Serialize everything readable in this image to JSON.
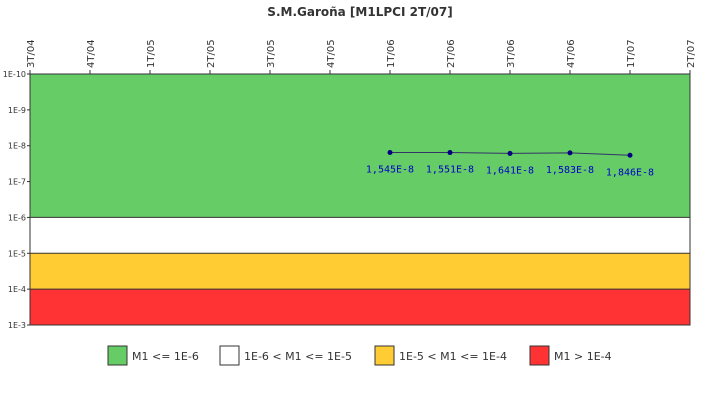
{
  "chart_data": {
    "type": "line",
    "title": "S.M.Garoña [M1LPCI 2T/07]",
    "xlabel": "",
    "ylabel": "",
    "x_ticks": [
      "3T/04",
      "4T/04",
      "1T/05",
      "2T/05",
      "3T/05",
      "4T/05",
      "1T/06",
      "2T/06",
      "3T/06",
      "4T/06",
      "1T/07",
      "2T/07"
    ],
    "y_scale": "log",
    "y_ticks": [
      "1E-10",
      "1E-9",
      "1E-8",
      "1E-7",
      "1E-6",
      "1E-5",
      "1E-4",
      "1E-3"
    ],
    "y_range": [
      1e-10,
      0.001
    ],
    "y_inverted": true,
    "grid": false,
    "legend_position": "bottom",
    "bands": [
      {
        "label": "M1 <= 1E-6",
        "from": 1e-10,
        "to": 1e-06,
        "color": "#66cc66"
      },
      {
        "label": "1E-6 < M1 <= 1E-5",
        "from": 1e-06,
        "to": 1e-05,
        "color": "#ffffff"
      },
      {
        "label": "1E-5 < M1 <= 1E-4",
        "from": 1e-05,
        "to": 0.0001,
        "color": "#ffcc33"
      },
      {
        "label": "M1 > 1E-4",
        "from": 0.0001,
        "to": 0.001,
        "color": "#ff3333"
      }
    ],
    "series": [
      {
        "color": "#333366",
        "marker_color": "#000080",
        "label_color": "#0000cc",
        "points": [
          {
            "x": "1T/06",
            "y": 1.545e-08,
            "label": "1,545E-8"
          },
          {
            "x": "2T/06",
            "y": 1.551e-08,
            "label": "1,551E-8"
          },
          {
            "x": "3T/06",
            "y": 1.641e-08,
            "label": "1,641E-8"
          },
          {
            "x": "4T/06",
            "y": 1.583e-08,
            "label": "1,583E-8"
          },
          {
            "x": "1T/07",
            "y": 1.846e-08,
            "label": "1,846E-8"
          }
        ]
      }
    ]
  }
}
